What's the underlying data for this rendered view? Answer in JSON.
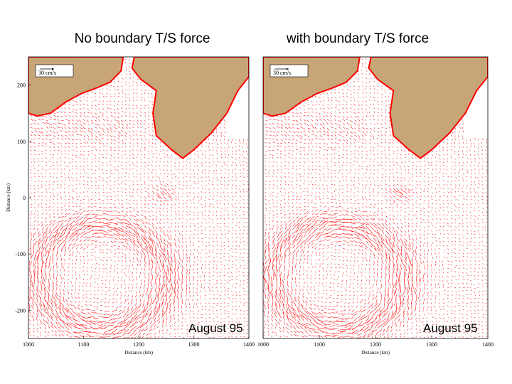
{
  "titles": {
    "left": "No boundary T/S force",
    "right": "with boundary T/S force"
  },
  "panels": [
    {
      "id": "left",
      "date_label": "August 95",
      "scale_label": "30 cm/s",
      "x_axis_label": "Distance (km)",
      "y_axis_label": "Distance (km)",
      "x_ticks": [
        "1000",
        "1100",
        "1200",
        "1300",
        "1400"
      ],
      "y_ticks": [
        "200",
        "100",
        "0",
        "-100",
        "-200"
      ],
      "x_range": [
        1000,
        1400
      ],
      "y_range": [
        -250,
        250
      ]
    },
    {
      "id": "right",
      "date_label": "August 95",
      "scale_label": "30 cm/s",
      "x_axis_label": "Distance (km)",
      "y_axis_label": "",
      "x_ticks": [
        "1000",
        "1100",
        "1200",
        "1300",
        "1400"
      ],
      "y_ticks": [],
      "x_range": [
        1000,
        1400
      ],
      "y_range": [
        -250,
        250
      ]
    }
  ],
  "colors": {
    "vector": "#ff0000",
    "land": "#c8a577",
    "frame": "#000000"
  }
}
